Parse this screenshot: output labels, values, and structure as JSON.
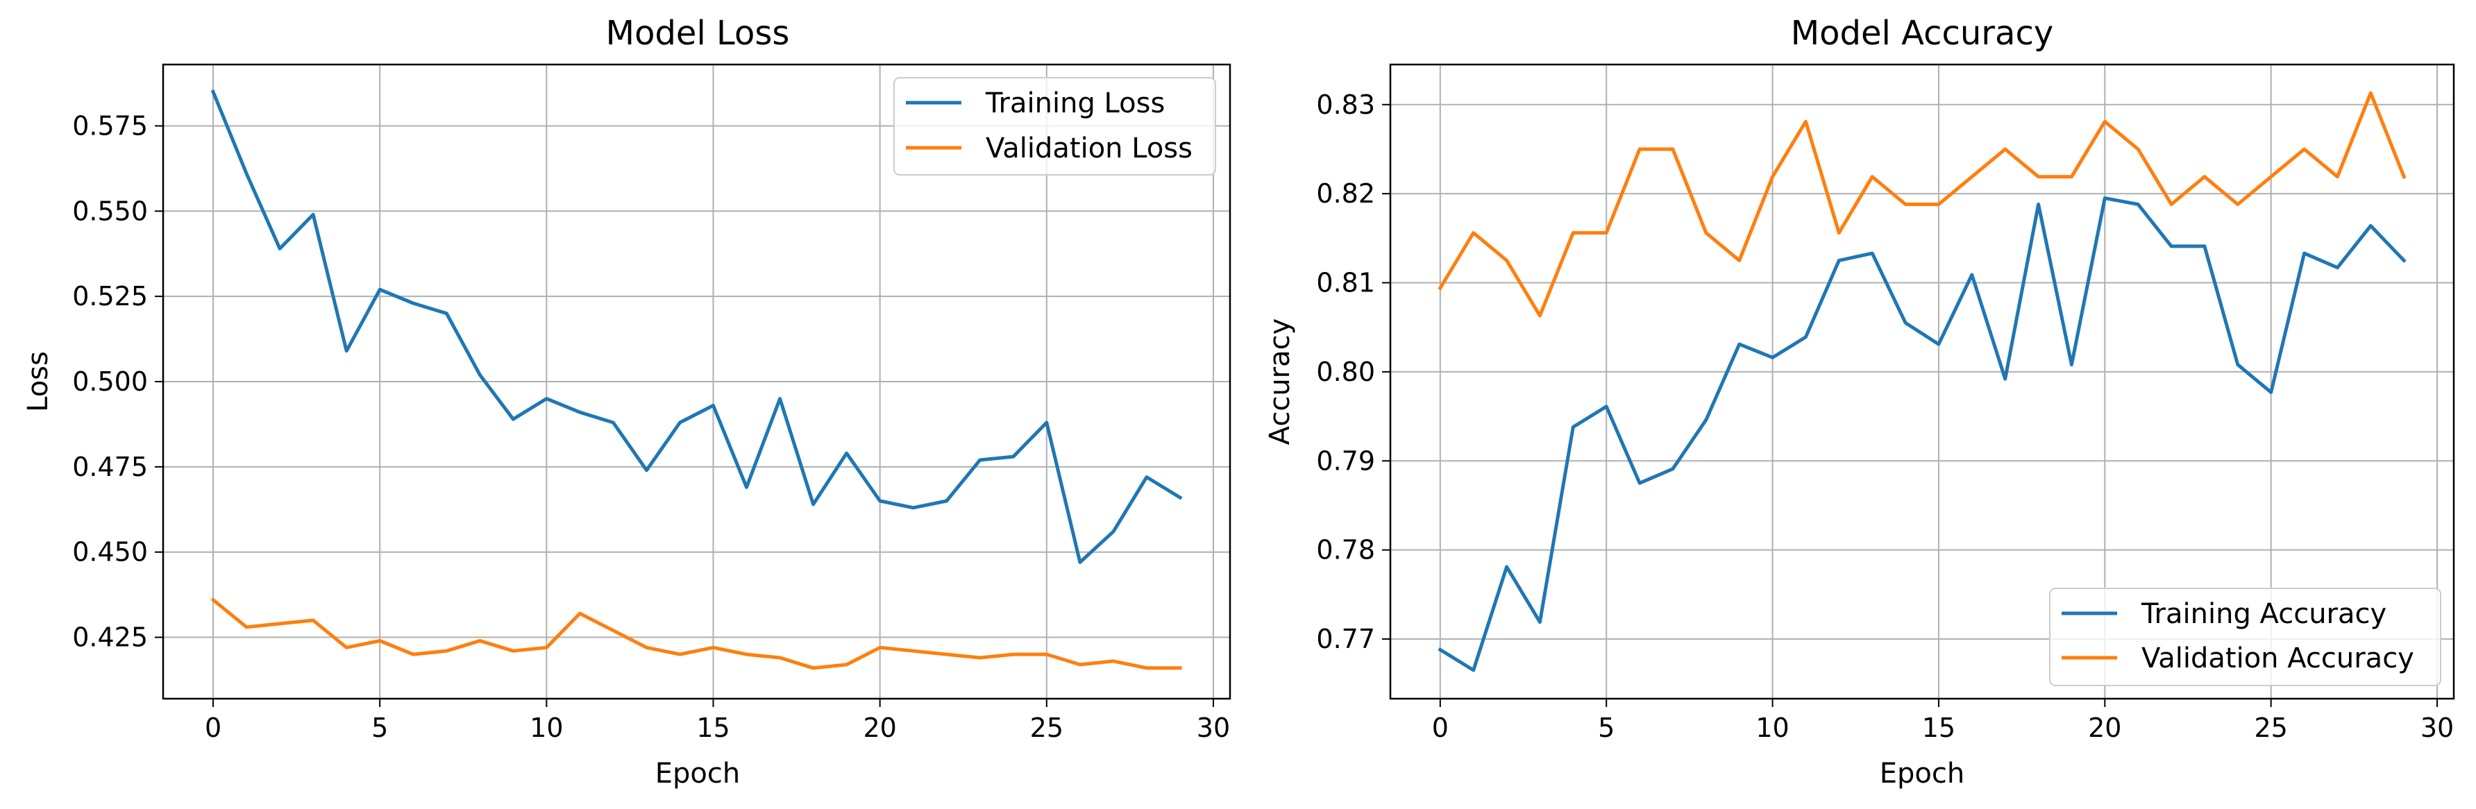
{
  "chart_data": [
    {
      "type": "line",
      "title": "Model Loss",
      "xlabel": "Epoch",
      "ylabel": "Loss",
      "xlim": [
        -1.5,
        30.5
      ],
      "ylim": [
        0.407,
        0.593
      ],
      "xticks": [
        0,
        5,
        10,
        15,
        20,
        25,
        30
      ],
      "xtick_labels": [
        "0",
        "5",
        "10",
        "15",
        "20",
        "25",
        "30"
      ],
      "yticks": [
        0.425,
        0.45,
        0.475,
        0.5,
        0.525,
        0.55,
        0.575
      ],
      "ytick_labels": [
        "0.425",
        "0.450",
        "0.475",
        "0.500",
        "0.525",
        "0.550",
        "0.575"
      ],
      "grid": true,
      "legend_position": "top-right",
      "x": [
        0,
        1,
        2,
        3,
        4,
        5,
        6,
        7,
        8,
        9,
        10,
        11,
        12,
        13,
        14,
        15,
        16,
        17,
        18,
        19,
        20,
        21,
        22,
        23,
        24,
        25,
        26,
        27,
        28,
        29
      ],
      "series": [
        {
          "name": "Training Loss",
          "color": "#1f77b4",
          "values": [
            0.585,
            0.561,
            0.539,
            0.549,
            0.509,
            0.527,
            0.523,
            0.52,
            0.502,
            0.489,
            0.495,
            0.491,
            0.488,
            0.474,
            0.488,
            0.493,
            0.469,
            0.495,
            0.464,
            0.479,
            0.465,
            0.463,
            0.465,
            0.477,
            0.478,
            0.488,
            0.447,
            0.456,
            0.472,
            0.466
          ]
        },
        {
          "name": "Validation Loss",
          "color": "#ff7f0e",
          "values": [
            0.436,
            0.428,
            0.429,
            0.43,
            0.422,
            0.424,
            0.42,
            0.421,
            0.424,
            0.421,
            0.422,
            0.432,
            0.427,
            0.422,
            0.42,
            0.422,
            0.42,
            0.419,
            0.416,
            0.417,
            0.422,
            0.421,
            0.42,
            0.419,
            0.42,
            0.42,
            0.417,
            0.418,
            0.416,
            0.416
          ]
        }
      ]
    },
    {
      "type": "line",
      "title": "Model Accuracy",
      "xlabel": "Epoch",
      "ylabel": "Accuracy",
      "xlim": [
        -1.5,
        30.5
      ],
      "ylim": [
        0.7633,
        0.8345
      ],
      "xticks": [
        0,
        5,
        10,
        15,
        20,
        25,
        30
      ],
      "xtick_labels": [
        "0",
        "5",
        "10",
        "15",
        "20",
        "25",
        "30"
      ],
      "yticks": [
        0.77,
        0.78,
        0.79,
        0.8,
        0.81,
        0.82,
        0.83
      ],
      "ytick_labels": [
        "0.77",
        "0.78",
        "0.79",
        "0.80",
        "0.81",
        "0.82",
        "0.83"
      ],
      "grid": true,
      "legend_position": "bottom-right",
      "x": [
        0,
        1,
        2,
        3,
        4,
        5,
        6,
        7,
        8,
        9,
        10,
        11,
        12,
        13,
        14,
        15,
        16,
        17,
        18,
        19,
        20,
        21,
        22,
        23,
        24,
        25,
        26,
        27,
        28,
        29
      ],
      "series": [
        {
          "name": "Training Accuracy",
          "color": "#1f77b4",
          "values": [
            0.7688,
            0.7665,
            0.7781,
            0.7719,
            0.7938,
            0.7961,
            0.7875,
            0.7891,
            0.7946,
            0.8031,
            0.8016,
            0.8039,
            0.8125,
            0.8133,
            0.8055,
            0.8031,
            0.8109,
            0.7992,
            0.8188,
            0.8008,
            0.8195,
            0.8188,
            0.8141,
            0.8141,
            0.8008,
            0.7977,
            0.8133,
            0.8117,
            0.8164,
            0.8125
          ]
        },
        {
          "name": "Validation Accuracy",
          "color": "#ff7f0e",
          "values": [
            0.8094,
            0.8156,
            0.8125,
            0.8063,
            0.8156,
            0.8156,
            0.825,
            0.825,
            0.8156,
            0.8125,
            0.8219,
            0.8281,
            0.8156,
            0.8219,
            0.8188,
            0.8188,
            0.8219,
            0.825,
            0.8219,
            0.8219,
            0.8281,
            0.825,
            0.8188,
            0.8219,
            0.8188,
            0.8219,
            0.825,
            0.8219,
            0.8313,
            0.8219
          ]
        }
      ]
    }
  ]
}
